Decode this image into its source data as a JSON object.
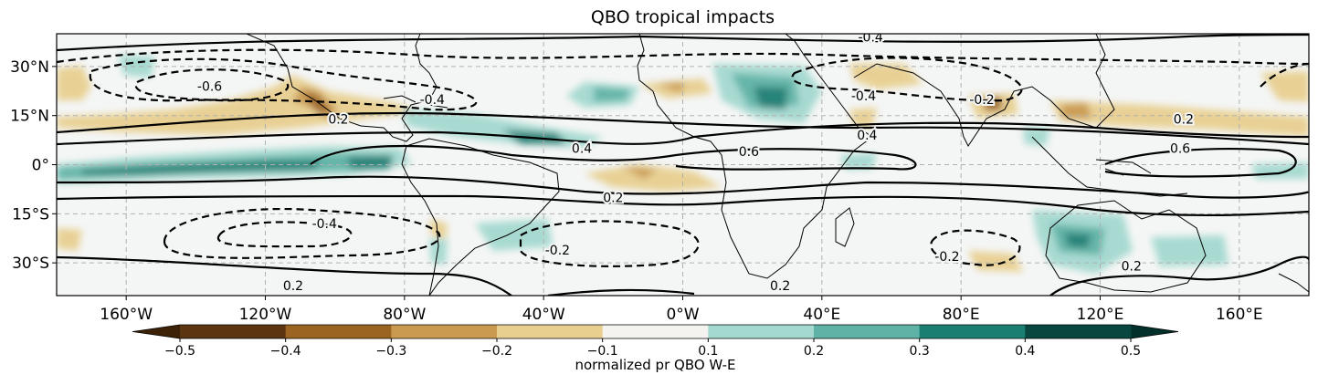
{
  "title": "QBO tropical impacts",
  "map": {
    "projection": "PlateCarree",
    "lon_range": [
      -180,
      180
    ],
    "lat_range": [
      -40,
      40
    ],
    "lat_ticks": [
      {
        "value": 30,
        "label": "30°N"
      },
      {
        "value": 15,
        "label": "15°N"
      },
      {
        "value": 0,
        "label": "0°"
      },
      {
        "value": -15,
        "label": "15°S"
      },
      {
        "value": -30,
        "label": "30°S"
      }
    ],
    "lon_ticks": [
      {
        "value": -160,
        "label": "160°W"
      },
      {
        "value": -120,
        "label": "120°W"
      },
      {
        "value": -80,
        "label": "80°W"
      },
      {
        "value": -40,
        "label": "40°W"
      },
      {
        "value": 0,
        "label": "0°W"
      },
      {
        "value": 40,
        "label": "40°E"
      },
      {
        "value": 80,
        "label": "80°E"
      },
      {
        "value": 120,
        "label": "120°E"
      },
      {
        "value": 160,
        "label": "160°E"
      }
    ],
    "gridlines": true,
    "contour_labels": [
      {
        "lon": -136,
        "lat": 24,
        "text": "-0.6"
      },
      {
        "lon": -72,
        "lat": 20,
        "text": "-0.4"
      },
      {
        "lon": -99,
        "lat": 14,
        "text": "0.2"
      },
      {
        "lon": -29,
        "lat": 5,
        "text": "0.4"
      },
      {
        "lon": 19,
        "lat": 4,
        "text": "0.6"
      },
      {
        "lon": 143,
        "lat": 5,
        "text": "0.6"
      },
      {
        "lon": 144,
        "lat": 14,
        "text": "0.2"
      },
      {
        "lon": 52,
        "lat": 21,
        "text": "-0.4"
      },
      {
        "lon": 86,
        "lat": 20,
        "text": "-0.2"
      },
      {
        "lon": 53,
        "lat": 9,
        "text": "0.4"
      },
      {
        "lon": -20,
        "lat": -10,
        "text": "0.2"
      },
      {
        "lon": -103,
        "lat": -18,
        "text": "-0.4"
      },
      {
        "lon": -36,
        "lat": -26,
        "text": "-0.2"
      },
      {
        "lon": 76,
        "lat": -28,
        "text": "-0.2"
      },
      {
        "lon": 129,
        "lat": -31,
        "text": "0.2"
      },
      {
        "lon": -112,
        "lat": -37,
        "text": "0.2"
      },
      {
        "lon": 28,
        "lat": -37,
        "text": "0.2"
      },
      {
        "lon": 54,
        "lat": 39,
        "text": "-0.4"
      }
    ]
  },
  "colorbar": {
    "label": "normalized pr QBO W-E",
    "ticks": [
      -0.5,
      -0.4,
      -0.3,
      -0.2,
      -0.1,
      0.1,
      0.2,
      0.3,
      0.4,
      0.5
    ],
    "tick_labels": [
      "−0.5",
      "−0.4",
      "−0.3",
      "−0.2",
      "−0.1",
      "0.1",
      "0.2",
      "0.3",
      "0.4",
      "0.5"
    ],
    "colors": [
      "#5a3510",
      "#9b6420",
      "#c99a4f",
      "#e8cf90",
      "#f4f3f0",
      "#a4d9d0",
      "#5fb2a6",
      "#1a7e73",
      "#07473f"
    ],
    "extend": "both"
  }
}
